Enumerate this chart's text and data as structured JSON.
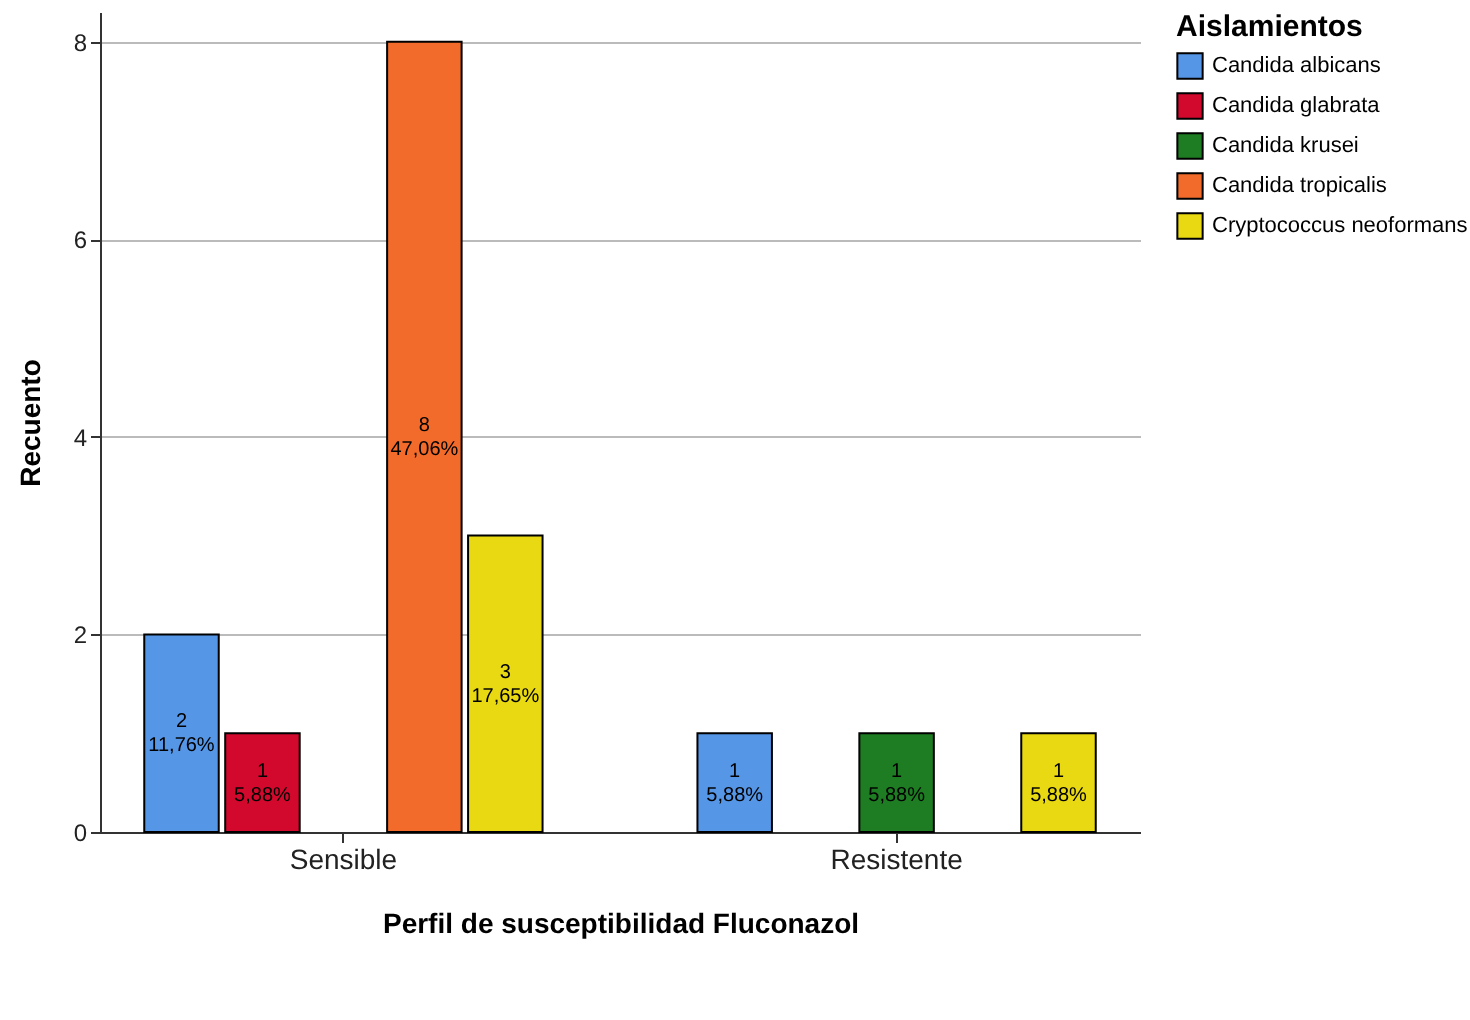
{
  "chart_data": {
    "type": "bar",
    "xlabel": "Perfil de susceptibilidad Fluconazol",
    "ylabel": "Recuento",
    "legend_title": "Aislamientos",
    "legend": "top right",
    "grid": "y",
    "categories": [
      "Sensible",
      "Resistente"
    ],
    "ylim": [
      0,
      8.3
    ],
    "yticks": [
      0,
      2,
      4,
      6,
      8
    ],
    "series": [
      {
        "name": "Candida albicans",
        "color": "#5596e6",
        "values": [
          2,
          1
        ],
        "value_labels": [
          "2\n11,76%",
          "1\n5,88%"
        ]
      },
      {
        "name": "Candida glabrata",
        "color": "#d2082d",
        "values": [
          1,
          null
        ],
        "value_labels": [
          "1\n5,88%",
          null
        ]
      },
      {
        "name": "Candida krusei",
        "color": "#1e7d23",
        "values": [
          null,
          1
        ],
        "value_labels": [
          null,
          "1\n5,88%"
        ]
      },
      {
        "name": "Candida tropicalis",
        "color": "#f26b2b",
        "values": [
          8,
          null
        ],
        "value_labels": [
          "8\n47,06%",
          null
        ]
      },
      {
        "name": "Cryptococcus neoformans",
        "color": "#e8d912",
        "values": [
          3,
          1
        ],
        "value_labels": [
          "3\n17,65%",
          "1\n5,88%"
        ]
      }
    ]
  }
}
